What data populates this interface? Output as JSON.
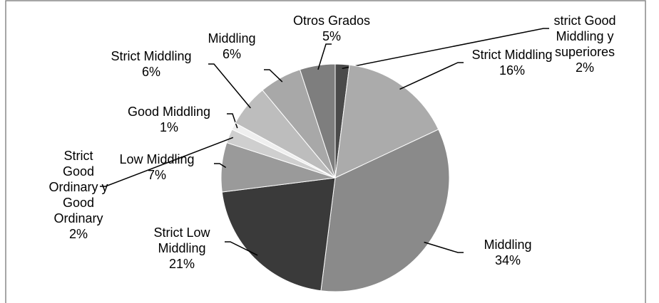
{
  "chart_data": {
    "type": "pie",
    "categories": [
      "strict Good Middling y superiores",
      "Strict Middling",
      "Middling",
      "Strict Low Middling",
      "Low Middling",
      "Strict Good Ordinary y Good Ordinary",
      "Good Middling",
      "Strict Middling",
      "Middling",
      "Otros Grados"
    ],
    "values": [
      2,
      16,
      34,
      21,
      7,
      2,
      1,
      6,
      6,
      5
    ],
    "value_labels": [
      "2%",
      "16%",
      "34%",
      "21%",
      "7%",
      "2%",
      "1%",
      "6%",
      "6%",
      "5%"
    ],
    "colors": [
      "#4a4a4a",
      "#ababab",
      "#8a8a8a",
      "#3a3a3a",
      "#9a9a9a",
      "#cfcfcf",
      "#efefef",
      "#bdbdbd",
      "#a8a8a8",
      "#7e7e7e"
    ]
  }
}
